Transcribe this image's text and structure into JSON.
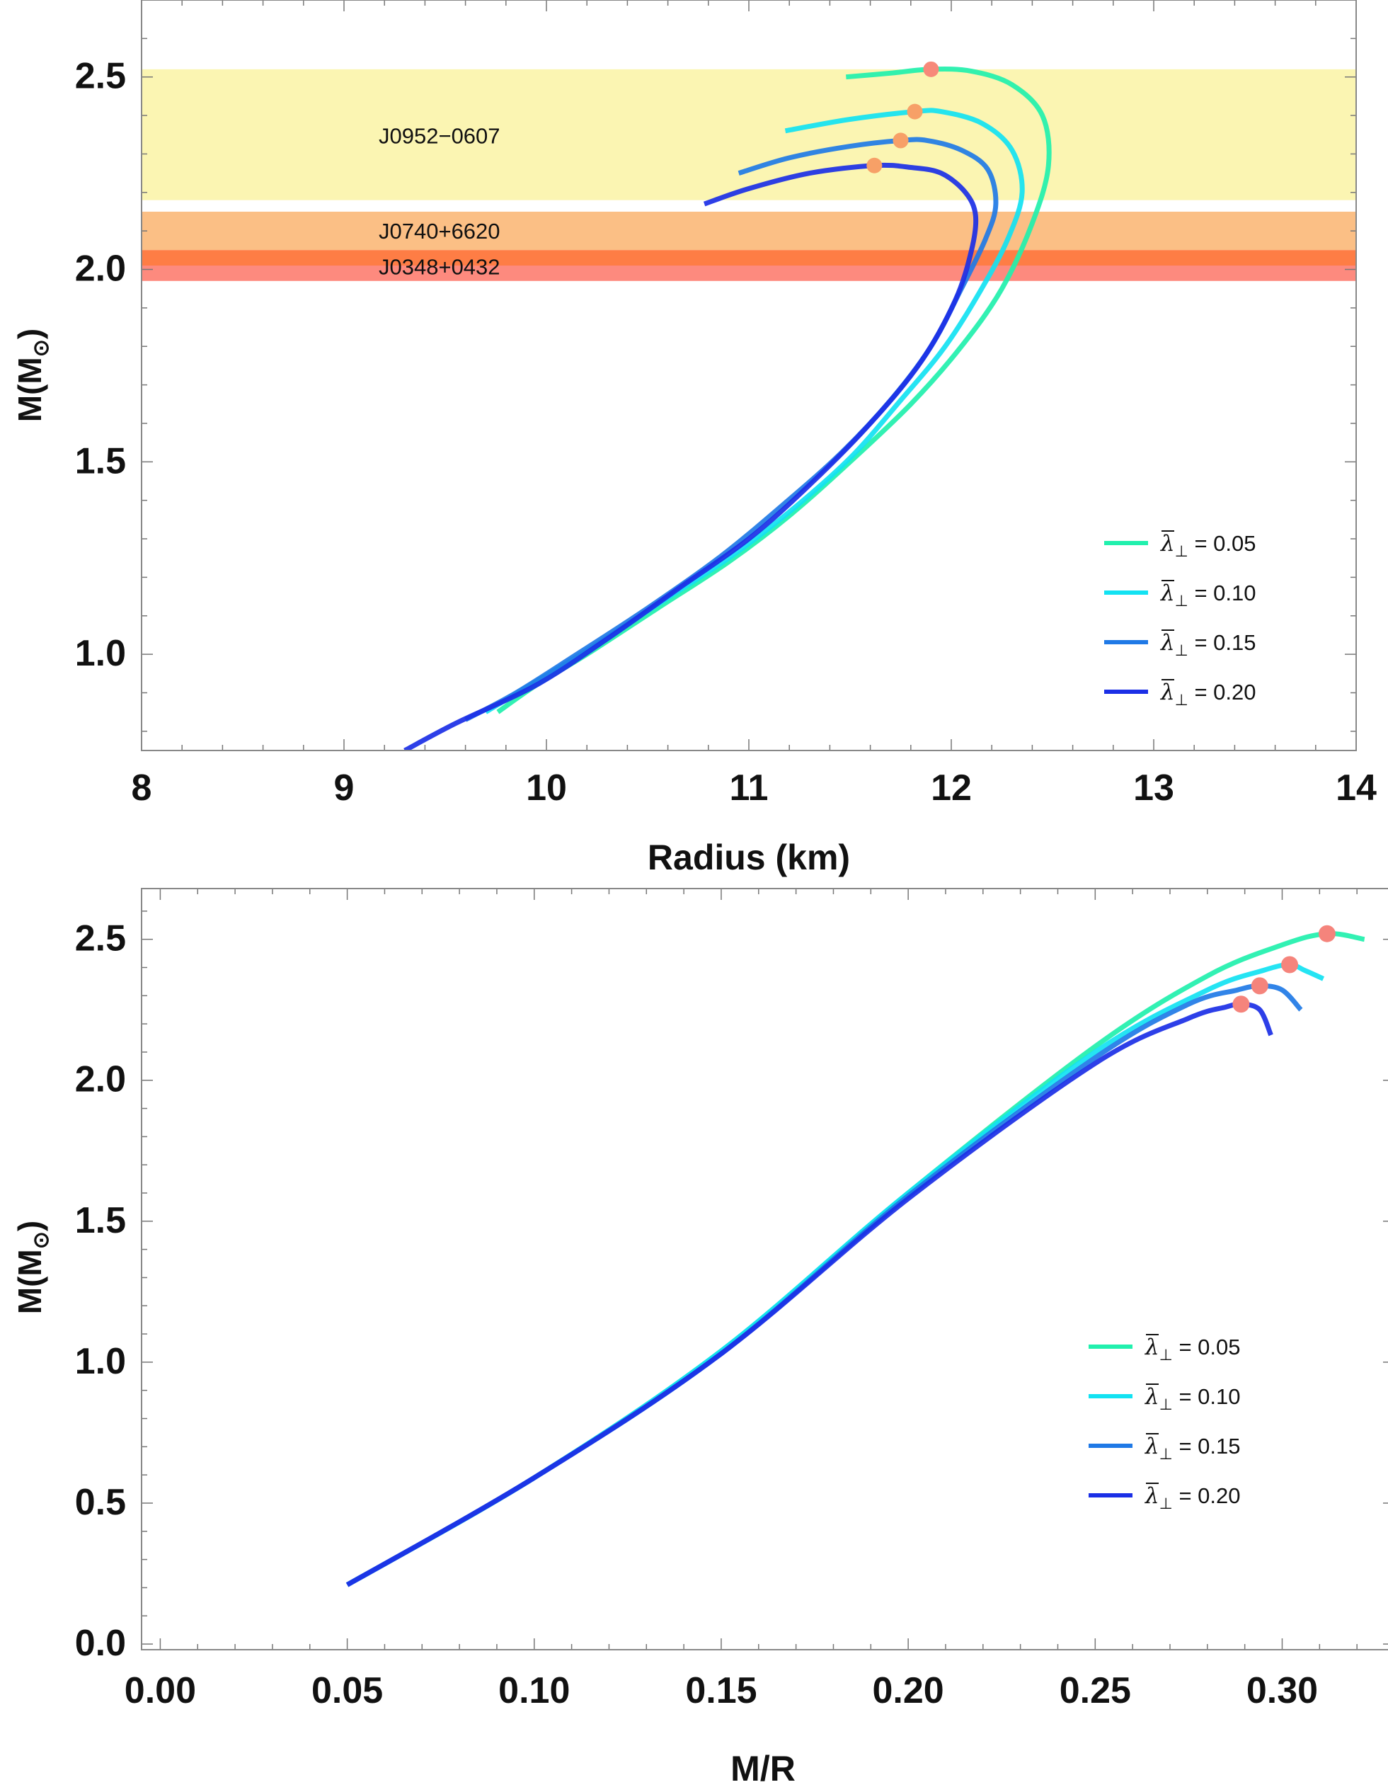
{
  "chart_data": [
    {
      "type": "line",
      "xlabel": "Radius (km)",
      "ylabel": "M(M",
      "ylabel_sub": "⊙",
      "ylabel_close": ")",
      "xlim": [
        8,
        14
      ],
      "ylim": [
        0.75,
        2.7
      ],
      "xticks": [
        "8",
        "9",
        "10",
        "11",
        "12",
        "13",
        "14"
      ],
      "yticks": [
        "1.0",
        "1.5",
        "2.0",
        "2.5"
      ],
      "bands": [
        {
          "name": "J0952-0607",
          "label": "J0952−0607",
          "range": [
            2.18,
            2.52
          ],
          "color": "#fbf5b2"
        },
        {
          "name": "J0740+6620",
          "label": "J0740+6620",
          "range": [
            2.05,
            2.15
          ],
          "color": "#fbbf85"
        },
        {
          "name": "J0348+0432",
          "label": "J0348+0432",
          "range": [
            1.97,
            2.05
          ],
          "color": "#fd8a7e"
        }
      ],
      "band_overlap": {
        "range": [
          2.01,
          2.05
        ],
        "color": "#fe7d45"
      },
      "legend_prefix": "λ",
      "legend_sub": "⊥",
      "series": [
        {
          "name": "λ⊥ = 0.05",
          "label": " = 0.05",
          "color": "#21f0ad",
          "points": [
            [
              9.76,
              0.85
            ],
            [
              9.95,
              0.92
            ],
            [
              10.2,
              1.0
            ],
            [
              10.55,
              1.12
            ],
            [
              10.9,
              1.24
            ],
            [
              11.2,
              1.36
            ],
            [
              11.5,
              1.5
            ],
            [
              11.8,
              1.65
            ],
            [
              12.05,
              1.8
            ],
            [
              12.25,
              1.95
            ],
            [
              12.4,
              2.12
            ],
            [
              12.48,
              2.27
            ],
            [
              12.45,
              2.4
            ],
            [
              12.3,
              2.48
            ],
            [
              12.1,
              2.515
            ],
            [
              11.9,
              2.52
            ],
            [
              11.7,
              2.51
            ],
            [
              11.48,
              2.5
            ]
          ],
          "peak": [
            11.9,
            2.52
          ]
        },
        {
          "name": "λ⊥ = 0.10",
          "label": " = 0.10",
          "color": "#12e2f2",
          "points": [
            [
              9.7,
              0.85
            ],
            [
              9.92,
              0.92
            ],
            [
              10.2,
              1.01
            ],
            [
              10.55,
              1.13
            ],
            [
              10.9,
              1.25
            ],
            [
              11.2,
              1.37
            ],
            [
              11.5,
              1.51
            ],
            [
              11.75,
              1.66
            ],
            [
              11.97,
              1.8
            ],
            [
              12.15,
              1.95
            ],
            [
              12.28,
              2.08
            ],
            [
              12.35,
              2.2
            ],
            [
              12.3,
              2.31
            ],
            [
              12.15,
              2.38
            ],
            [
              11.95,
              2.41
            ],
            [
              11.82,
              2.41
            ],
            [
              11.5,
              2.39
            ],
            [
              11.18,
              2.36
            ]
          ],
          "peak": [
            11.82,
            2.41
          ]
        },
        {
          "name": "λ⊥ = 0.15",
          "label": " = 0.15",
          "color": "#1f79e6",
          "points": [
            [
              9.6,
              0.83
            ],
            [
              9.85,
              0.9
            ],
            [
              10.15,
              1.0
            ],
            [
              10.5,
              1.12
            ],
            [
              10.85,
              1.25
            ],
            [
              11.15,
              1.38
            ],
            [
              11.45,
              1.52
            ],
            [
              11.7,
              1.66
            ],
            [
              11.9,
              1.8
            ],
            [
              12.05,
              1.95
            ],
            [
              12.17,
              2.08
            ],
            [
              12.22,
              2.17
            ],
            [
              12.18,
              2.26
            ],
            [
              12.05,
              2.31
            ],
            [
              11.88,
              2.335
            ],
            [
              11.75,
              2.335
            ],
            [
              11.5,
              2.32
            ],
            [
              11.2,
              2.29
            ],
            [
              10.95,
              2.25
            ]
          ],
          "peak": [
            11.75,
            2.335
          ]
        },
        {
          "name": "λ⊥ = 0.20",
          "label": " = 0.20",
          "color": "#1b2fe6",
          "points": [
            [
              9.3,
              0.75
            ],
            [
              9.55,
              0.82
            ],
            [
              9.95,
              0.92
            ],
            [
              10.3,
              1.04
            ],
            [
              10.65,
              1.17
            ],
            [
              11.0,
              1.3
            ],
            [
              11.3,
              1.44
            ],
            [
              11.6,
              1.6
            ],
            [
              11.85,
              1.76
            ],
            [
              12.02,
              1.92
            ],
            [
              12.1,
              2.05
            ],
            [
              12.12,
              2.14
            ],
            [
              12.07,
              2.2
            ],
            [
              11.95,
              2.25
            ],
            [
              11.8,
              2.265
            ],
            [
              11.62,
              2.27
            ],
            [
              11.3,
              2.25
            ],
            [
              11.0,
              2.21
            ],
            [
              10.78,
              2.17
            ]
          ],
          "peak": [
            11.62,
            2.27
          ]
        }
      ]
    },
    {
      "type": "line",
      "xlabel": "M/R",
      "ylabel": "M(M",
      "ylabel_sub": "⊙",
      "ylabel_close": ")",
      "xlim": [
        -0.005,
        0.33
      ],
      "ylim": [
        -0.02,
        2.68
      ],
      "xticks": [
        "0.00",
        "0.05",
        "0.10",
        "0.15",
        "0.20",
        "0.25",
        "0.30"
      ],
      "yticks": [
        "0.0",
        "0.5",
        "1.0",
        "1.5",
        "2.0",
        "2.5"
      ],
      "legend_prefix": "λ",
      "legend_sub": "⊥",
      "series": [
        {
          "name": "λ⊥ = 0.05",
          "label": " = 0.05",
          "color": "#21f0ad",
          "points": [
            [
              0.05,
              0.21
            ],
            [
              0.1,
              0.59
            ],
            [
              0.15,
              1.04
            ],
            [
              0.2,
              1.6
            ],
            [
              0.25,
              2.12
            ],
            [
              0.28,
              2.37
            ],
            [
              0.3,
              2.48
            ],
            [
              0.312,
              2.52
            ],
            [
              0.322,
              2.5
            ]
          ],
          "peak": [
            0.312,
            2.52
          ]
        },
        {
          "name": "λ⊥ = 0.10",
          "label": " = 0.10",
          "color": "#12e2f2",
          "points": [
            [
              0.05,
              0.21
            ],
            [
              0.1,
              0.59
            ],
            [
              0.15,
              1.04
            ],
            [
              0.2,
              1.6
            ],
            [
              0.25,
              2.1
            ],
            [
              0.28,
              2.32
            ],
            [
              0.295,
              2.39
            ],
            [
              0.302,
              2.41
            ],
            [
              0.306,
              2.39
            ],
            [
              0.311,
              2.36
            ]
          ],
          "peak": [
            0.302,
            2.41
          ]
        },
        {
          "name": "λ⊥ = 0.15",
          "label": " = 0.15",
          "color": "#1f79e6",
          "points": [
            [
              0.05,
              0.21
            ],
            [
              0.1,
              0.59
            ],
            [
              0.15,
              1.03
            ],
            [
              0.2,
              1.59
            ],
            [
              0.25,
              2.08
            ],
            [
              0.275,
              2.27
            ],
            [
              0.288,
              2.32
            ],
            [
              0.294,
              2.335
            ],
            [
              0.3,
              2.32
            ],
            [
              0.305,
              2.25
            ]
          ],
          "peak": [
            0.294,
            2.335
          ]
        },
        {
          "name": "λ⊥ = 0.20",
          "label": " = 0.20",
          "color": "#1b2fe6",
          "points": [
            [
              0.05,
              0.21
            ],
            [
              0.1,
              0.59
            ],
            [
              0.15,
              1.03
            ],
            [
              0.2,
              1.58
            ],
            [
              0.25,
              2.06
            ],
            [
              0.275,
              2.22
            ],
            [
              0.285,
              2.26
            ],
            [
              0.289,
              2.27
            ],
            [
              0.294,
              2.25
            ],
            [
              0.297,
              2.16
            ]
          ],
          "peak": [
            0.289,
            2.27
          ]
        }
      ]
    }
  ]
}
